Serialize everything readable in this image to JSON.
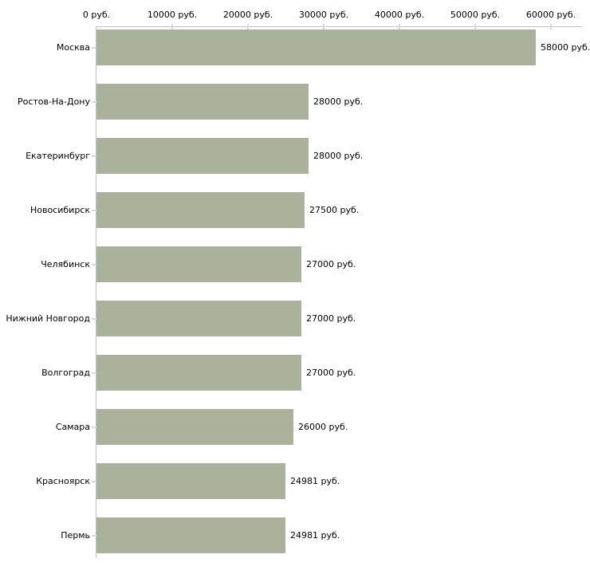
{
  "chart_data": {
    "type": "bar",
    "orientation": "horizontal",
    "title": "",
    "categories": [
      "Москва",
      "Ростов-На-Дону",
      "Екатеринбург",
      "Новосибирск",
      "Челябинск",
      "Нижний Новгород",
      "Волгоград",
      "Самара",
      "Красноярск",
      "Пермь"
    ],
    "values": [
      58000,
      28000,
      28000,
      27500,
      27000,
      27000,
      27000,
      26000,
      24981,
      24981
    ],
    "bar_labels": [
      "58000 руб.",
      "28000 руб.",
      "28000 руб.",
      "27500 руб.",
      "27000 руб.",
      "27000 руб.",
      "27000 руб.",
      "26000 руб.",
      "24981 руб.",
      "24981 руб."
    ],
    "xlabel": "",
    "ylabel": "",
    "xlim": [
      0,
      64000
    ],
    "x_axis": {
      "position": "top",
      "tick_values": [
        0,
        10000,
        20000,
        30000,
        40000,
        50000,
        60000
      ],
      "tick_labels": [
        "0 руб.",
        "10000 руб.",
        "20000 руб.",
        "30000 руб.",
        "40000 руб.",
        "50000 руб.",
        "60000 руб."
      ]
    },
    "legend": "none",
    "grid": "off",
    "colors": {
      "bar": "#abb29b",
      "axis_line": "#c3c3c3",
      "tick_mark": "#d9dcc0",
      "text": "#000000",
      "background": "#ffffff"
    }
  }
}
